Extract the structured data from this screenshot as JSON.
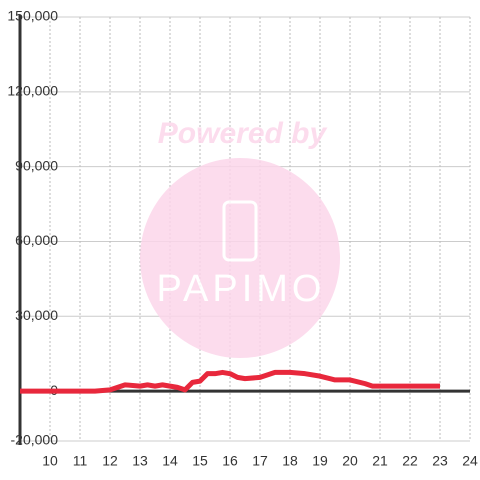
{
  "chart_data": {
    "type": "line",
    "watermark": {
      "line1": "Powered by",
      "line2": "PAPIMO"
    },
    "x": [
      9,
      9.5,
      10,
      10.5,
      11,
      11.5,
      12,
      12.25,
      12.5,
      13,
      13.25,
      13.5,
      13.75,
      14,
      14.25,
      14.5,
      14.75,
      15,
      15.25,
      15.5,
      15.75,
      16,
      16.25,
      16.5,
      17,
      17.25,
      17.5,
      18,
      18.5,
      19,
      19.5,
      20,
      20.5,
      20.75,
      21,
      21.5,
      22,
      22.5,
      23
    ],
    "series": [
      {
        "color": "#e8283c",
        "values": [
          0,
          0,
          0,
          0,
          0,
          0,
          500,
          1500,
          2500,
          2000,
          2500,
          2000,
          2500,
          2000,
          1500,
          500,
          3500,
          4000,
          7000,
          7000,
          7500,
          7000,
          5500,
          5000,
          5500,
          6500,
          7500,
          7500,
          7000,
          6000,
          4500,
          4500,
          3000,
          2000,
          2000,
          2000,
          2000,
          2000,
          2000
        ]
      }
    ],
    "xlim": [
      9,
      24
    ],
    "xticks": [
      10,
      11,
      12,
      13,
      14,
      15,
      16,
      17,
      18,
      19,
      20,
      21,
      22,
      23,
      24
    ],
    "ylim": [
      -20000,
      150000
    ],
    "yticks": [
      {
        "value": -20000,
        "label": "-20,000"
      },
      0,
      {
        "value": 30000,
        "label": "30,000"
      },
      {
        "value": 60000,
        "label": "60,000"
      },
      {
        "value": 90000,
        "label": "90,000"
      },
      {
        "value": 120000,
        "label": "120,000"
      },
      {
        "value": 150000,
        "label": "150,000"
      }
    ],
    "grid": true
  }
}
